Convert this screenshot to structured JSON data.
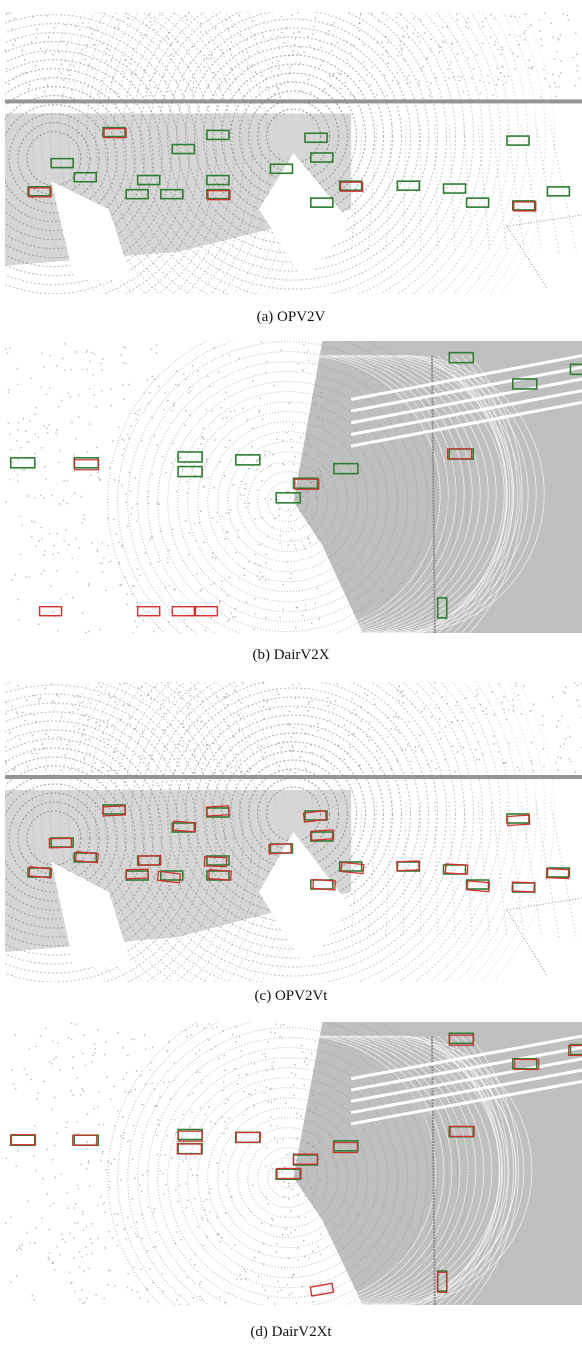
{
  "figure": {
    "colors": {
      "ground_truth_box": "#2e7d32",
      "prediction_box": "#d32f2f",
      "point_cloud": "#8a8a8a",
      "background": "#ffffff"
    },
    "panels": [
      {
        "id": "a",
        "caption": "(a) OPV2V",
        "scene": "opv2v"
      },
      {
        "id": "b",
        "caption": "(b) DairV2X",
        "scene": "dair"
      },
      {
        "id": "c",
        "caption": "(c) OPV2Vt",
        "scene": "opv2v"
      },
      {
        "id": "d",
        "caption": "(d) DairV2Xt",
        "scene": "dair"
      }
    ]
  }
}
